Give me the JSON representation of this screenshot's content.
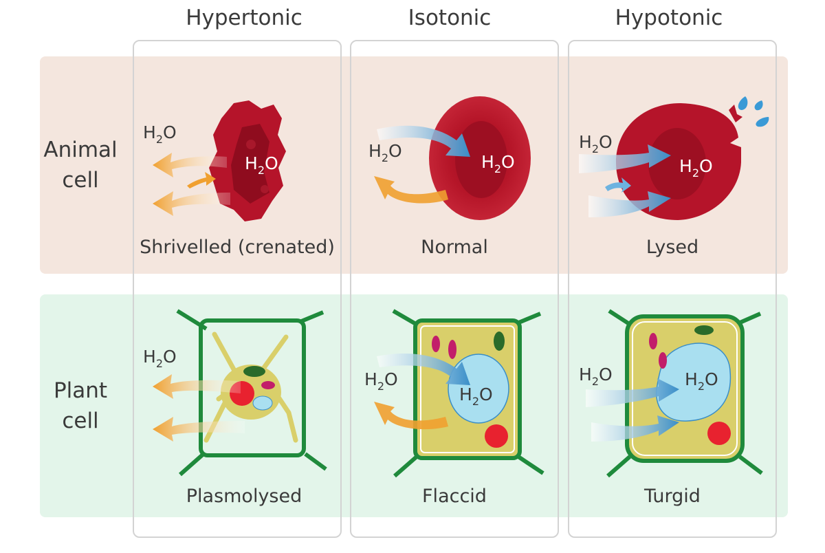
{
  "columns": {
    "hypertonic": "Hypertonic",
    "isotonic": "Isotonic",
    "hypotonic": "Hypotonic"
  },
  "rows": {
    "animal_line1": "Animal",
    "animal_line2": "cell",
    "plant_line1": "Plant",
    "plant_line2": "cell"
  },
  "captions": {
    "animal_hypertonic": "Shrivelled (crenated)",
    "animal_isotonic": "Normal",
    "animal_hypotonic": "Lysed",
    "plant_hypertonic": "Plasmolysed",
    "plant_isotonic": "Flaccid",
    "plant_hypotonic": "Turgid"
  },
  "water": {
    "base": "H",
    "sub": "2",
    "tail": "O"
  },
  "colors": {
    "animal_band": "#f4e6de",
    "plant_band": "#e3f5ea",
    "blood_cell": "#b5142a",
    "cell_wall": "#1f8a3c",
    "cytoplasm": "#d9cf6a",
    "vacuole": "#a9dff0",
    "nucleus": "#e8222f",
    "arrow_out": "#f0a030",
    "arrow_in": "#3a8ec8"
  }
}
